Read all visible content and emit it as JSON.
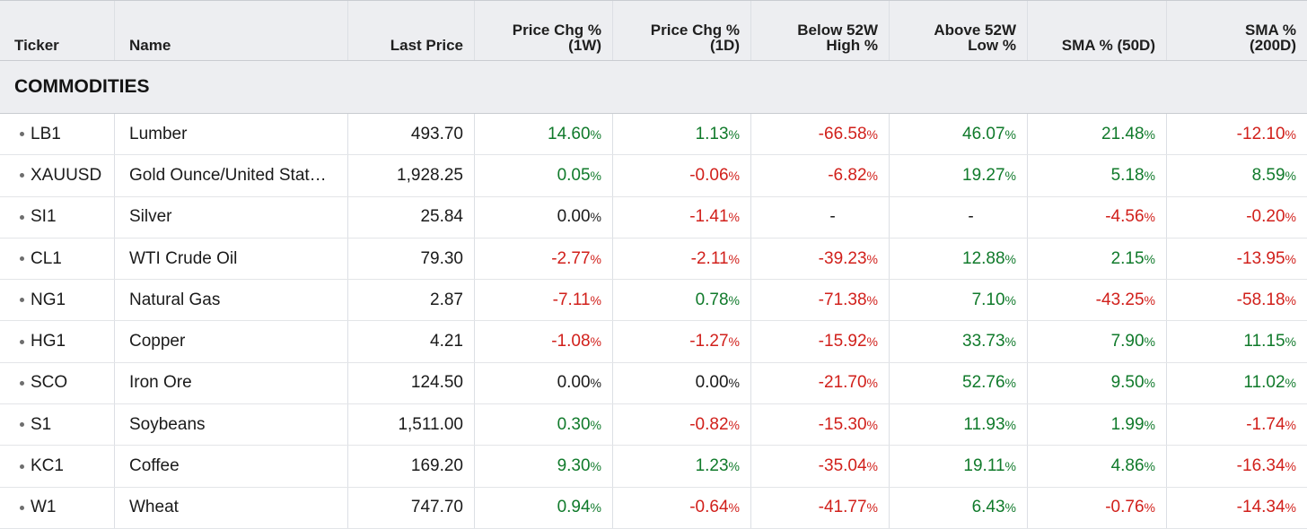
{
  "columns": [
    "Ticker",
    "Name",
    "Last Price",
    "Price Chg %\n(1W)",
    "Price Chg %\n(1D)",
    "Below 52W\nHigh %",
    "Above 52W\nLow %",
    "SMA % (50D)",
    "SMA %\n(200D)"
  ],
  "header": {
    "ticker": "Ticker",
    "name": "Name",
    "last_price": "Last Price",
    "chg1w_a": "Price Chg %",
    "chg1w_b": "(1W)",
    "chg1d_a": "Price Chg %",
    "chg1d_b": "(1D)",
    "below_a": "Below 52W",
    "below_b": "High %",
    "above_a": "Above 52W",
    "above_b": "Low %",
    "sma50": "SMA % (50D)",
    "sma200_a": "SMA %",
    "sma200_b": "(200D)"
  },
  "section": "COMMODITIES",
  "colors": {
    "positive": "#107a2b",
    "negative": "#d1201b",
    "header_bg": "#edeef1"
  },
  "rows": [
    {
      "ticker": "LB1",
      "name": "Lumber",
      "last": "493.70",
      "vals": [
        "14.60",
        "1.13",
        "-66.58",
        "46.07",
        "21.48",
        "-12.10"
      ]
    },
    {
      "ticker": "XAUUSD",
      "name": "Gold Ounce/United Stat…",
      "last": "1,928.25",
      "vals": [
        "0.05",
        "-0.06",
        "-6.82",
        "19.27",
        "5.18",
        "8.59"
      ]
    },
    {
      "ticker": "SI1",
      "name": "Silver",
      "last": "25.84",
      "vals": [
        "0.00",
        "-1.41",
        "-",
        "-",
        "-4.56",
        "-0.20"
      ]
    },
    {
      "ticker": "CL1",
      "name": "WTI Crude Oil",
      "last": "79.30",
      "vals": [
        "-2.77",
        "-2.11",
        "-39.23",
        "12.88",
        "2.15",
        "-13.95"
      ]
    },
    {
      "ticker": "NG1",
      "name": "Natural Gas",
      "last": "2.87",
      "vals": [
        "-7.11",
        "0.78",
        "-71.38",
        "7.10",
        "-43.25",
        "-58.18"
      ]
    },
    {
      "ticker": "HG1",
      "name": "Copper",
      "last": "4.21",
      "vals": [
        "-1.08",
        "-1.27",
        "-15.92",
        "33.73",
        "7.90",
        "11.15"
      ]
    },
    {
      "ticker": "SCO",
      "name": "Iron Ore",
      "last": "124.50",
      "vals": [
        "0.00",
        "0.00",
        "-21.70",
        "52.76",
        "9.50",
        "11.02"
      ]
    },
    {
      "ticker": "S1",
      "name": "Soybeans",
      "last": "1,511.00",
      "vals": [
        "0.30",
        "-0.82",
        "-15.30",
        "11.93",
        "1.99",
        "-1.74"
      ]
    },
    {
      "ticker": "KC1",
      "name": "Coffee",
      "last": "169.20",
      "vals": [
        "9.30",
        "1.23",
        "-35.04",
        "19.11",
        "4.86",
        "-16.34"
      ]
    },
    {
      "ticker": "W1",
      "name": "Wheat",
      "last": "747.70",
      "vals": [
        "0.94",
        "-0.64",
        "-41.77",
        "6.43",
        "-0.76",
        "-14.34"
      ]
    }
  ]
}
